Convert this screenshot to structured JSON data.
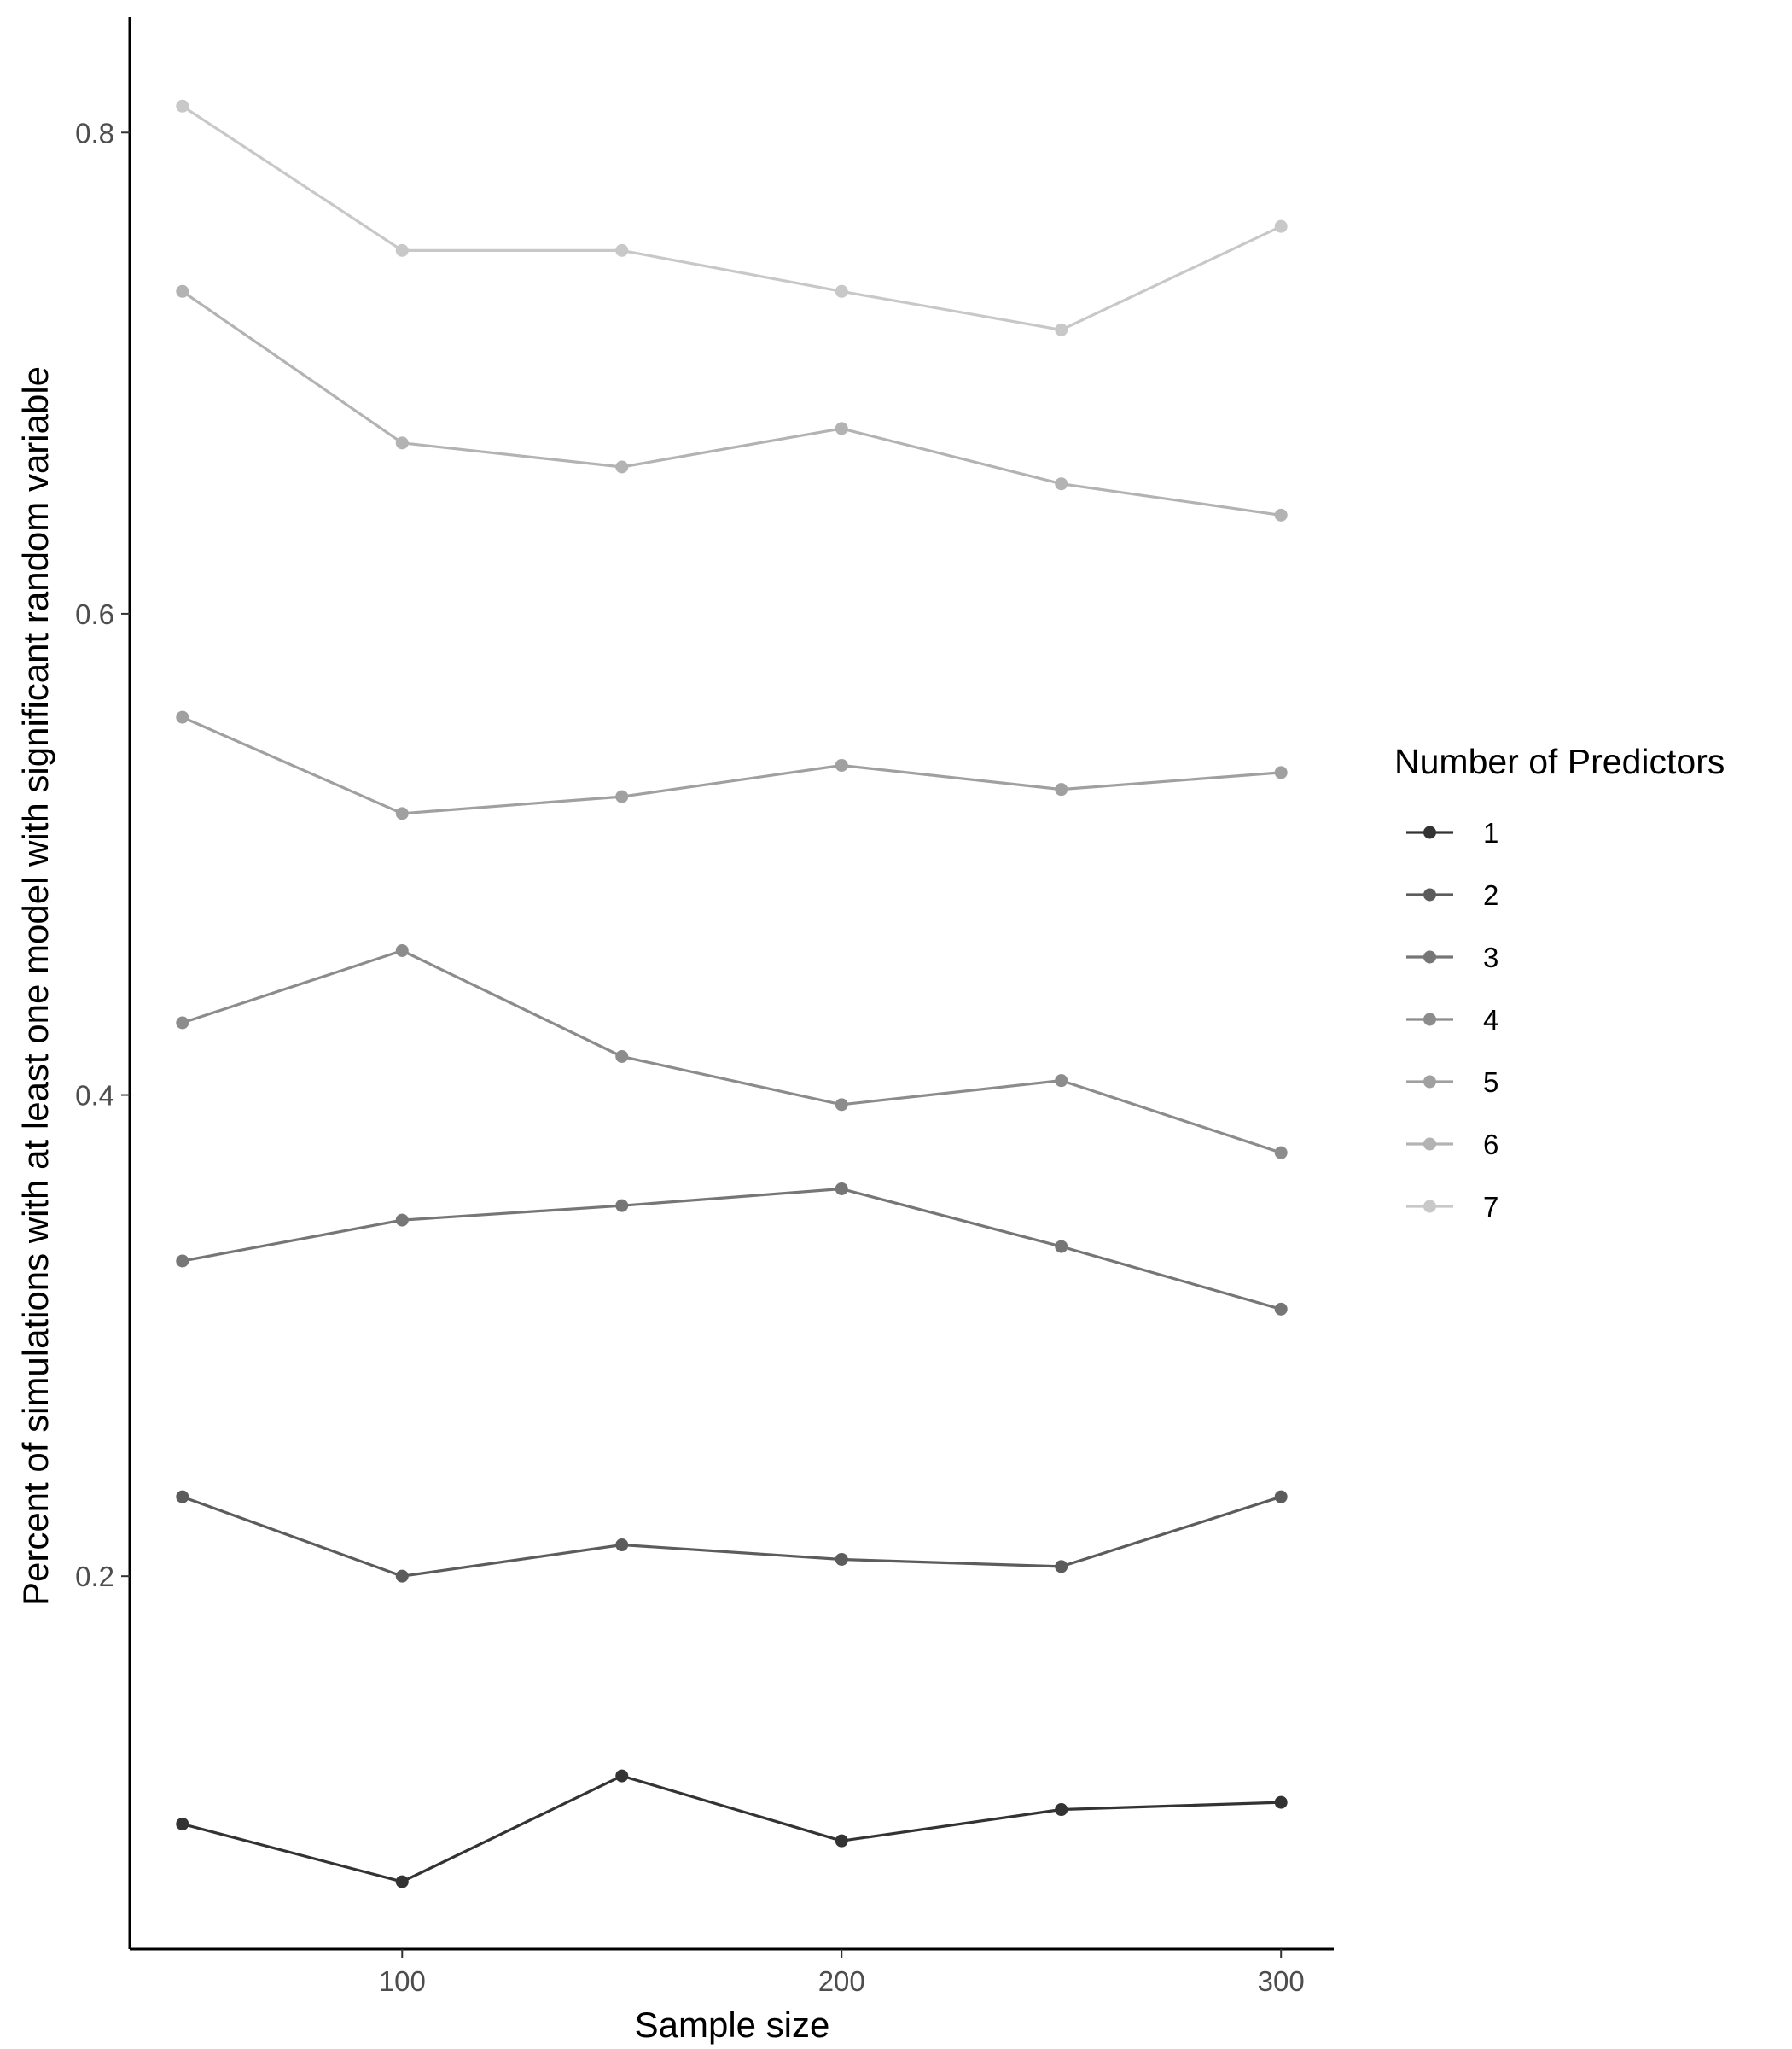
{
  "chart_data": {
    "type": "line",
    "xlabel": "Sample size",
    "ylabel": "Percent of simulations with at least one model with significant random variable",
    "x": [
      50,
      100,
      150,
      200,
      250,
      300
    ],
    "xlim": [
      38,
      312
    ],
    "ylim": [
      0.045,
      0.848
    ],
    "xticks": [
      100,
      200,
      300
    ],
    "xtick_labels": [
      "100",
      "200",
      "300"
    ],
    "yticks": [
      0.2,
      0.4,
      0.6,
      0.8
    ],
    "ytick_labels": [
      "0.2",
      "0.4",
      "0.6",
      "0.8"
    ],
    "grid": false,
    "legend": {
      "title": "Number of Predictors",
      "position": "right"
    },
    "series": [
      {
        "name": "1",
        "color": "#333333",
        "values": [
          0.097,
          0.073,
          0.117,
          0.09,
          0.103,
          0.106
        ]
      },
      {
        "name": "2",
        "color": "#5c5c5c",
        "values": [
          0.233,
          0.2,
          0.213,
          0.207,
          0.204,
          0.233
        ]
      },
      {
        "name": "3",
        "color": "#767676",
        "values": [
          0.331,
          0.348,
          0.354,
          0.361,
          0.337,
          0.311
        ]
      },
      {
        "name": "4",
        "color": "#8c8c8c",
        "values": [
          0.43,
          0.46,
          0.416,
          0.396,
          0.406,
          0.376
        ]
      },
      {
        "name": "5",
        "color": "#a0a0a0",
        "values": [
          0.557,
          0.517,
          0.524,
          0.537,
          0.527,
          0.534
        ]
      },
      {
        "name": "6",
        "color": "#b3b3b3",
        "values": [
          0.734,
          0.671,
          0.661,
          0.677,
          0.654,
          0.641
        ]
      },
      {
        "name": "7",
        "color": "#c8c8c8",
        "values": [
          0.811,
          0.751,
          0.751,
          0.734,
          0.718,
          0.761
        ]
      }
    ]
  }
}
